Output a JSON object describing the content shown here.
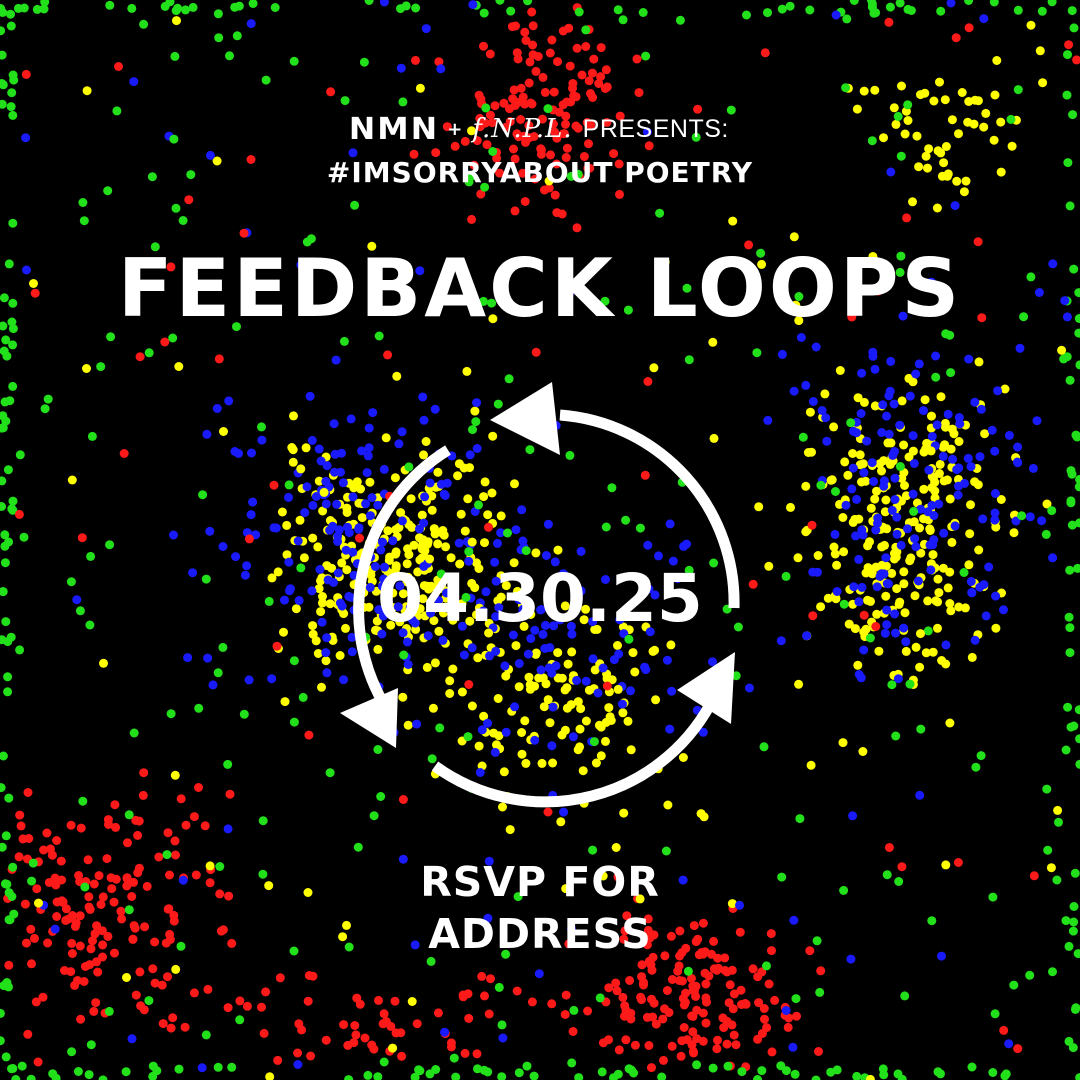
{
  "header": {
    "logo_left": "NMN",
    "plus": "+",
    "logo_right": "f.N.P.L.",
    "presents": "PRESENTS:",
    "hashtag": "#IMSORRYABOUT POETRY"
  },
  "title": "FEEDBACK LOOPS",
  "date": "04.30.25",
  "rsvp": {
    "line1": "RSVP FOR",
    "line2": "ADDRESS"
  },
  "colors": {
    "background": "#000000",
    "text": "#ffffff",
    "dot_red": "#ff1a1a",
    "dot_green": "#22e01a",
    "dot_blue": "#1a1aff",
    "dot_yellow": "#ffff00"
  },
  "icons": {
    "cycle": "circular-arrows-icon"
  }
}
